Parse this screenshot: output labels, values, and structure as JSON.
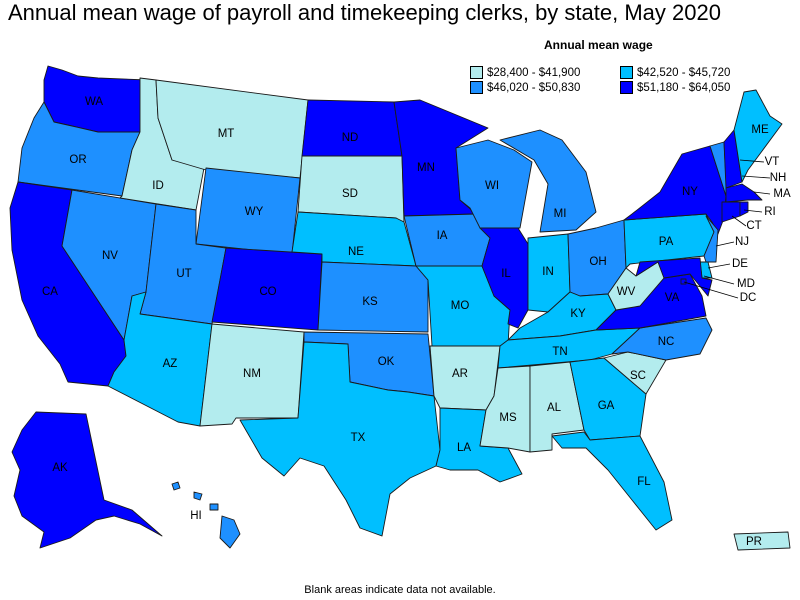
{
  "title": "Annual mean wage of payroll and timekeeping clerks, by state, May 2020",
  "legend": {
    "title": "Annual mean wage",
    "items": [
      {
        "key": "q1",
        "label": "$28,400 - $41,900",
        "color": "#b3ecee"
      },
      {
        "key": "q2",
        "label": "$42,520 - $45,720",
        "color": "#00bfff"
      },
      {
        "key": "q3",
        "label": "$46,020 - $50,830",
        "color": "#1e90ff"
      },
      {
        "key": "q4",
        "label": "$51,180 - $64,050",
        "color": "#0000ff"
      }
    ]
  },
  "footnote": "Blank areas indicate data not available.",
  "states": {
    "WA": "q4",
    "OR": "q3",
    "CA": "q4",
    "NV": "q3",
    "ID": "q1",
    "MT": "q1",
    "WY": "q3",
    "UT": "q3",
    "AZ": "q2",
    "CO": "q4",
    "NM": "q1",
    "ND": "q4",
    "SD": "q1",
    "NE": "q2",
    "KS": "q3",
    "OK": "q3",
    "TX": "q2",
    "MN": "q4",
    "IA": "q3",
    "MO": "q2",
    "AR": "q1",
    "LA": "q2",
    "WI": "q3",
    "IL": "q4",
    "MI": "q3",
    "IN": "q2",
    "OH": "q3",
    "KY": "q2",
    "TN": "q2",
    "MS": "q1",
    "AL": "q1",
    "GA": "q2",
    "FL": "q2",
    "SC": "q1",
    "NC": "q3",
    "VA": "q4",
    "WV": "q1",
    "PA": "q2",
    "NY": "q4",
    "ME": "q2",
    "VT": "q3",
    "NH": "q4",
    "MA": "q4",
    "RI": "q4",
    "CT": "q4",
    "NJ": "q3",
    "DE": "q2",
    "MD": "q4",
    "DC": "q4",
    "AK": "q4",
    "HI": "q3",
    "PR": "q1"
  },
  "labels": {
    "WA": "WA",
    "OR": "OR",
    "CA": "CA",
    "NV": "NV",
    "ID": "ID",
    "MT": "MT",
    "WY": "WY",
    "UT": "UT",
    "AZ": "AZ",
    "CO": "CO",
    "NM": "NM",
    "ND": "ND",
    "SD": "SD",
    "NE": "NE",
    "KS": "KS",
    "OK": "OK",
    "TX": "TX",
    "MN": "MN",
    "IA": "IA",
    "MO": "MO",
    "AR": "AR",
    "LA": "LA",
    "WI": "WI",
    "IL": "IL",
    "MI": "MI",
    "IN": "IN",
    "OH": "OH",
    "KY": "KY",
    "TN": "TN",
    "MS": "MS",
    "AL": "AL",
    "GA": "GA",
    "FL": "FL",
    "SC": "SC",
    "NC": "NC",
    "VA": "VA",
    "WV": "WV",
    "PA": "PA",
    "NY": "NY",
    "ME": "ME",
    "VT": "VT",
    "NH": "NH",
    "MA": "MA",
    "RI": "RI",
    "CT": "CT",
    "NJ": "NJ",
    "DE": "DE",
    "MD": "MD",
    "DC": "DC",
    "AK": "AK",
    "HI": "HI",
    "PR": "PR"
  }
}
